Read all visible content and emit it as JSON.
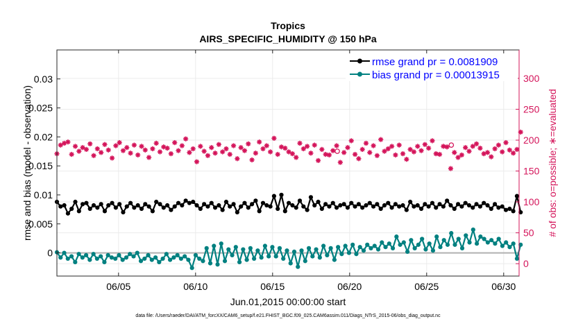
{
  "chart_data": {
    "type": "line",
    "title": "Tropics",
    "subtitle": "AIRS_SPECIFIC_HUMIDITY @ 150 hPa",
    "xlabel": "Jun.01,2015 00:00:00 start",
    "ylabel_left": "rmse and bias (model - observation)",
    "ylabel_right": "# of obs: o=possible; ∗=evaluated",
    "footer": "data file: /Users/raeder/DAI/ATM_forcXX/CAM6_setup/f.e21.FHIST_BGC.f09_025.CAM6assim.011/Diags_NTrS_2015-06/obs_diag_output.nc",
    "x_range": [
      1,
      31
    ],
    "x_ticks": [
      {
        "day": 5,
        "label": "06/05"
      },
      {
        "day": 10,
        "label": "06/10"
      },
      {
        "day": 15,
        "label": "06/15"
      },
      {
        "day": 20,
        "label": "06/20"
      },
      {
        "day": 25,
        "label": "06/25"
      },
      {
        "day": 30,
        "label": "06/30"
      }
    ],
    "y_left_range": [
      -0.004,
      0.035
    ],
    "y_left_ticks": [
      {
        "value": 0,
        "label": "0"
      },
      {
        "value": 0.005,
        "label": "0.005"
      },
      {
        "value": 0.01,
        "label": "0.01"
      },
      {
        "value": 0.015,
        "label": "0.015"
      },
      {
        "value": 0.02,
        "label": "0.02"
      },
      {
        "value": 0.025,
        "label": "0.025"
      },
      {
        "value": 0.03,
        "label": "0.03"
      }
    ],
    "y_right_range": [
      -20,
      346
    ],
    "y_right_ticks": [
      {
        "value": 0,
        "label": "0"
      },
      {
        "value": 50,
        "label": "50"
      },
      {
        "value": 100,
        "label": "100"
      },
      {
        "value": 150,
        "label": "150"
      },
      {
        "value": 200,
        "label": "200"
      },
      {
        "value": 250,
        "label": "250"
      },
      {
        "value": 300,
        "label": "300"
      }
    ],
    "legend_position": "top-right",
    "series": [
      {
        "name": "rmse grand pr = 0.0081909",
        "axis": "left",
        "color": "#000000",
        "legend_text_color": "#0000ff",
        "values": [
          0.0088,
          0.008,
          0.0082,
          0.0068,
          0.0076,
          0.0088,
          0.0072,
          0.0084,
          0.0086,
          0.0076,
          0.0082,
          0.0078,
          0.0084,
          0.0072,
          0.0082,
          0.0086,
          0.0078,
          0.0084,
          0.007,
          0.008,
          0.0086,
          0.0078,
          0.0082,
          0.0076,
          0.0084,
          0.008,
          0.0072,
          0.0088,
          0.0084,
          0.0078,
          0.0082,
          0.0074,
          0.008,
          0.0086,
          0.0082,
          0.009,
          0.0086,
          0.0088,
          0.0082,
          0.0076,
          0.0084,
          0.008,
          0.0086,
          0.0078,
          0.0082,
          0.0074,
          0.0088,
          0.008,
          0.0084,
          0.007,
          0.008,
          0.0086,
          0.0078,
          0.0084,
          0.009,
          0.0072,
          0.0086,
          0.0082,
          0.008,
          0.0098,
          0.0076,
          0.01,
          0.0072,
          0.0086,
          0.0082,
          0.0078,
          0.009,
          0.008,
          0.0074,
          0.0096,
          0.0082,
          0.0088,
          0.0076,
          0.0084,
          0.008,
          0.0086,
          0.0078,
          0.0082,
          0.0084,
          0.0078,
          0.0086,
          0.008,
          0.0084,
          0.0078,
          0.0082,
          0.0086,
          0.008,
          0.0084,
          0.0076,
          0.0082,
          0.0086,
          0.0078,
          0.0084,
          0.008,
          0.0082,
          0.0074,
          0.0088,
          0.008,
          0.0082,
          0.0076,
          0.0084,
          0.008,
          0.0086,
          0.0078,
          0.0084,
          0.008,
          0.009,
          0.0082,
          0.0076,
          0.0084,
          0.008,
          0.0086,
          0.0082,
          0.0078,
          0.0084,
          0.008,
          0.0086,
          0.0082,
          0.0076,
          0.0084,
          0.0078,
          0.008,
          0.0074,
          0.0076,
          0.0072,
          0.0098,
          0.007
        ]
      },
      {
        "name": "bias grand pr = 0.00013915",
        "axis": "left",
        "color": "#008080",
        "legend_text_color": "#0000ff",
        "values": [
          0.0001,
          -0.0008,
          0.0,
          -0.001,
          -0.0006,
          -0.0016,
          -0.0002,
          -0.0008,
          -0.0004,
          -0.0012,
          -0.0002,
          -0.001,
          -0.0006,
          -0.0016,
          -0.0004,
          -0.0008,
          -0.001,
          -0.0004,
          -0.0012,
          -0.0008,
          -0.0002,
          -0.0006,
          0.0,
          -0.0014,
          -0.001,
          -0.0004,
          -0.0012,
          -0.0008,
          -0.0016,
          -0.001,
          -0.0002,
          -0.0012,
          -0.0008,
          -0.0004,
          -0.001,
          -0.0006,
          -0.0012,
          -0.0026,
          -0.0004,
          -0.001,
          -0.0014,
          0.0008,
          -0.0018,
          0.0012,
          -0.002,
          0.0016,
          -0.0014,
          0.0006,
          -0.0004,
          0.001,
          -0.0016,
          0.0006,
          -0.0012,
          0.0008,
          -0.001,
          0.0004,
          -0.0008,
          0.0012,
          -0.0006,
          0.001,
          -0.0006,
          0.0008,
          -0.001,
          0.0004,
          -0.0018,
          0.0002,
          -0.0024,
          0.0004,
          -0.0014,
          0.0008,
          -0.0006,
          0.0006,
          -0.0008,
          0.0012,
          -0.0004,
          0.0008,
          -0.0012,
          0.001,
          -0.0002,
          0.0012,
          0.0,
          0.0014,
          -0.0002,
          0.001,
          0.0004,
          0.0014,
          0.0008,
          0.0012,
          0.0006,
          0.0018,
          0.001,
          0.0016,
          0.0008,
          0.0028,
          0.0014,
          0.0018,
          0.0002,
          0.0022,
          0.0008,
          0.0014,
          0.0024,
          0.0006,
          0.0016,
          0.0004,
          0.0028,
          0.001,
          0.0022,
          0.0014,
          0.0034,
          0.0014,
          0.0024,
          0.0008,
          0.003,
          0.0018,
          0.004,
          0.0016,
          0.0028,
          0.0024,
          0.0018,
          0.0022,
          0.0016,
          0.0024,
          0.0012,
          0.0018,
          0.001,
          0.0016,
          -0.001,
          0.0014
        ]
      },
      {
        "name": "# of obs evaluated",
        "axis": "right",
        "color": "#d4145a",
        "marker": "asterisk",
        "values": [
          178,
          192,
          195,
          197,
          177,
          190,
          182,
          188,
          185,
          194,
          175,
          186,
          180,
          193,
          184,
          171,
          191,
          196,
          183,
          188,
          179,
          192,
          176,
          190,
          184,
          172,
          186,
          195,
          181,
          189,
          187,
          178,
          196,
          183,
          191,
          202,
          180,
          186,
          165,
          190,
          182,
          175,
          188,
          179,
          193,
          181,
          186,
          177,
          191,
          170,
          188,
          183,
          194,
          168,
          179,
          197,
          186,
          191,
          181,
          203,
          177,
          189,
          187,
          181,
          178,
          172,
          195,
          186,
          190,
          179,
          192,
          167,
          185,
          177,
          176,
          183,
          191,
          164,
          180,
          188,
          199,
          177,
          170,
          185,
          195,
          180,
          191,
          175,
          201,
          182,
          186,
          190,
          176,
          192,
          178,
          169,
          185,
          181,
          190,
          183,
          193,
          187,
          199,
          178,
          177,
          190,
          189,
          154,
          180,
          172,
          176,
          188,
          182,
          190,
          194,
          187,
          178,
          180,
          173,
          186,
          192,
          181,
          196,
          184,
          179,
          185,
          213
        ]
      },
      {
        "name": "# of obs possible",
        "axis": "right",
        "color": "#d4145a",
        "marker": "circle",
        "points": [
          {
            "x": 19.2,
            "value": 182
          },
          {
            "x": 26.6,
            "value": 192
          }
        ]
      }
    ]
  }
}
